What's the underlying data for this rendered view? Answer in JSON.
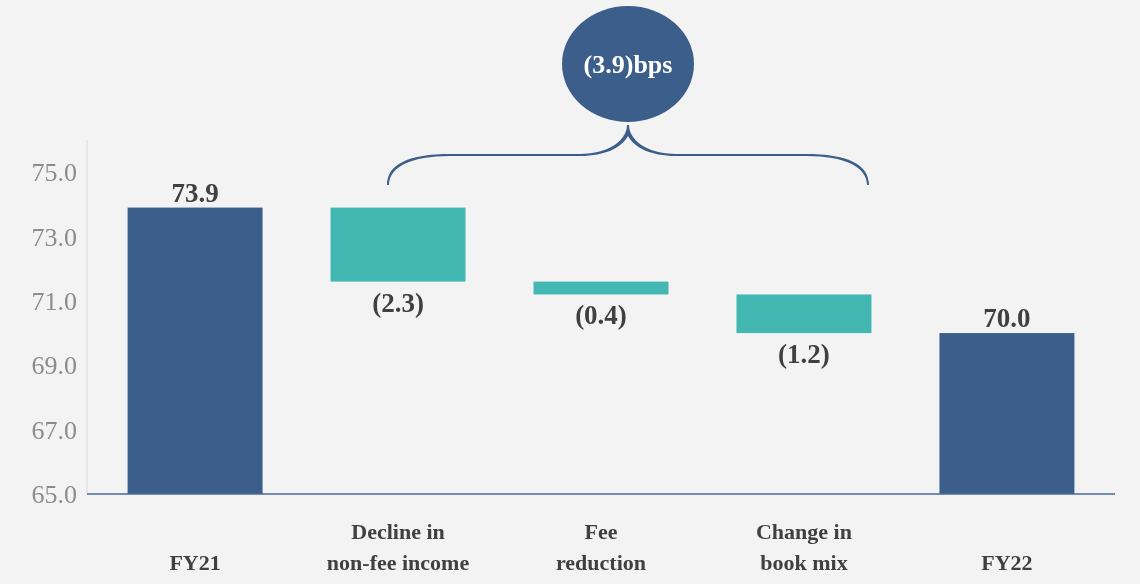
{
  "chart_data": {
    "type": "bar",
    "categories": [
      "FY21",
      "Decline in\nnon-fee income",
      "Fee\nreduction",
      "Change in\nbook mix",
      "FY22"
    ],
    "values": [
      73.9,
      -2.3,
      -0.4,
      -1.2,
      70.0
    ],
    "base": [
      null,
      73.9,
      71.6,
      71.2,
      null
    ],
    "colors": [
      "#3b5e8a",
      "#43b8b2",
      "#43b8b2",
      "#43b8b2",
      "#3b5e8a"
    ],
    "value_labels": [
      "73.9",
      "(2.3)",
      "(0.4)",
      "(1.2)",
      "70.0"
    ],
    "ylim": [
      65,
      76
    ],
    "yticks": [
      {
        "value": 65,
        "label": "65.0"
      },
      {
        "value": 67,
        "label": "67.0"
      },
      {
        "value": 69,
        "label": "69.0"
      },
      {
        "value": 71,
        "label": "71.0"
      },
      {
        "value": 73,
        "label": "73.0"
      },
      {
        "value": 75,
        "label": "75.0"
      }
    ],
    "annotations": [
      "(3.9)bps"
    ],
    "grid": false
  }
}
